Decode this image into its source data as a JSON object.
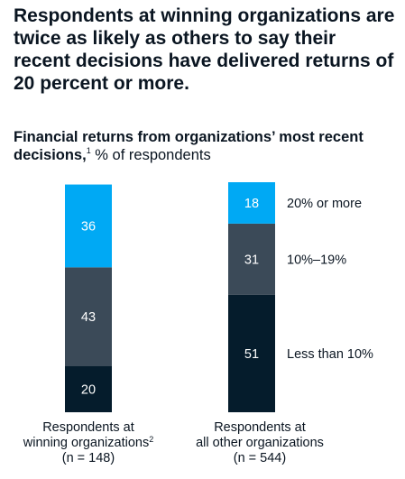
{
  "title": "Respondents at winning organizations are twice as likely as others to say their recent decisions have delivered returns of 20 percent or more.",
  "subtitle": {
    "bold": "Financial returns from organizations’ most recent decisions,",
    "footnote": "1",
    "rest": " % of respondents"
  },
  "chart_data": {
    "type": "bar",
    "stacked": true,
    "title": "Financial returns from organizations’ most recent decisions, % of respondents",
    "categories": [
      {
        "line1": "Respondents at",
        "line2": "winning organizations",
        "footnote": "2",
        "line3": "(n = 148)"
      },
      {
        "line1": "Respondents at",
        "line2": "all other organizations",
        "footnote": "",
        "line3": "(n = 544)"
      }
    ],
    "series": [
      {
        "name": "Less than 10%",
        "values": [
          20,
          51
        ],
        "color": "#051c2c"
      },
      {
        "name": "10%–19%",
        "values": [
          43,
          31
        ],
        "color": "#3b4a58"
      },
      {
        "name": "20% or more",
        "values": [
          36,
          18
        ],
        "color": "#00a9f4"
      }
    ],
    "ylim": [
      0,
      100
    ],
    "legend": "right"
  }
}
